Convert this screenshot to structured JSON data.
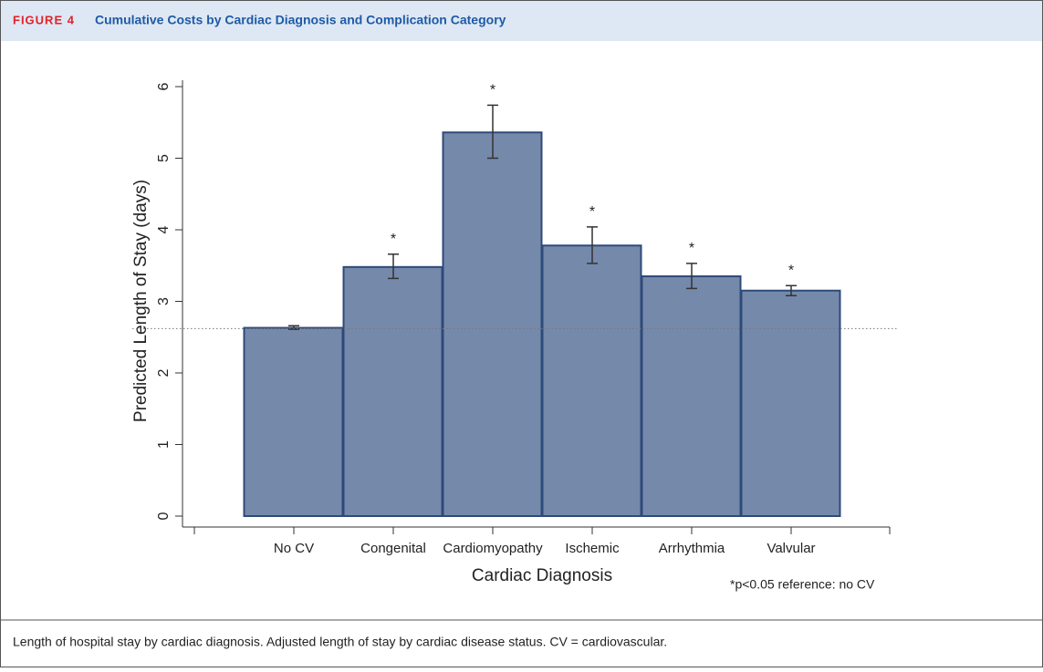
{
  "figure": {
    "label": "FIGURE 4",
    "title": "Cumulative Costs by Cardiac Diagnosis and Complication Category"
  },
  "chart_data": {
    "type": "bar",
    "categories": [
      "No CV",
      "Congenital",
      "Cardiomyopathy",
      "Ischemic",
      "Arrhythmia",
      "Valvular"
    ],
    "values": [
      2.63,
      3.48,
      5.36,
      3.78,
      3.35,
      3.15
    ],
    "ci_lower": [
      2.61,
      3.32,
      5.0,
      3.53,
      3.18,
      3.08
    ],
    "ci_upper": [
      2.66,
      3.66,
      5.74,
      4.04,
      3.53,
      3.22
    ],
    "sig_labels": [
      null,
      "*",
      "*",
      "*",
      "*",
      "*"
    ],
    "color": "#7589ab",
    "reference_line": 2.62,
    "ylim": [
      0,
      6
    ],
    "yticks": [
      0,
      1,
      2,
      3,
      4,
      5,
      6
    ],
    "y_label": "Predicted Length of Stay (days)",
    "x_label": "Cardiac Diagnosis",
    "footnote": "*p<0.05 reference: no CV"
  },
  "caption": "Length of hospital stay by cardiac diagnosis. Adjusted length of stay by cardiac disease status. CV = cardiovascular."
}
